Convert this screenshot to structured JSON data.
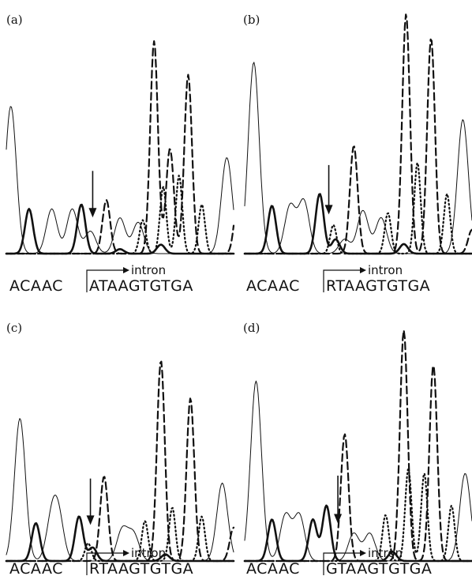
{
  "chart_data": [
    {
      "type": "line",
      "panel_label": "(a)",
      "sequence": "ACAAC|ATAAGTGTGA",
      "sequence_left": "ACAAC",
      "sequence_right": "ATAAGTGTGA",
      "annotation": "intron",
      "channels": [
        {
          "style": "thin",
          "peaks": [
            {
              "x": 0.02,
              "h": 0.66
            },
            {
              "x": 0.2,
              "h": 0.2
            },
            {
              "x": 0.29,
              "h": 0.2
            },
            {
              "x": 0.37,
              "h": 0.1
            },
            {
              "x": 0.5,
              "h": 0.16
            },
            {
              "x": 0.58,
              "h": 0.14
            },
            {
              "x": 0.97,
              "h": 0.43
            }
          ]
        },
        {
          "style": "bold",
          "peaks": [
            {
              "x": 0.1,
              "h": 0.2
            },
            {
              "x": 0.33,
              "h": 0.22
            },
            {
              "x": 0.5,
              "h": 0.02
            },
            {
              "x": 0.68,
              "h": 0.04
            }
          ]
        },
        {
          "style": "dashed",
          "peaks": [
            {
              "x": 0.44,
              "h": 0.24
            },
            {
              "x": 0.65,
              "h": 0.95
            },
            {
              "x": 0.72,
              "h": 0.47
            },
            {
              "x": 0.8,
              "h": 0.8
            },
            {
              "x": 1.02,
              "h": 0.25
            }
          ]
        },
        {
          "style": "dotted",
          "peaks": [
            {
              "x": 0.6,
              "h": 0.15
            },
            {
              "x": 0.69,
              "h": 0.3
            },
            {
              "x": 0.76,
              "h": 0.35
            },
            {
              "x": 0.86,
              "h": 0.22
            }
          ]
        }
      ],
      "arrow_x": 0.38
    },
    {
      "type": "line",
      "panel_label": "(b)",
      "sequence": "ACAAC|RTAAGTGTGA",
      "sequence_left": "ACAAC",
      "sequence_right": "RTAAGTGTGA",
      "annotation": "intron",
      "channels": [
        {
          "style": "thin",
          "peaks": [
            {
              "x": 0.04,
              "h": 0.8
            },
            {
              "x": 0.2,
              "h": 0.2
            },
            {
              "x": 0.26,
              "h": 0.22
            },
            {
              "x": 0.44,
              "h": 0.06
            },
            {
              "x": 0.52,
              "h": 0.18
            },
            {
              "x": 0.6,
              "h": 0.15
            },
            {
              "x": 0.96,
              "h": 0.56
            }
          ]
        },
        {
          "style": "bold",
          "peaks": [
            {
              "x": 0.12,
              "h": 0.2
            },
            {
              "x": 0.33,
              "h": 0.25
            },
            {
              "x": 0.4,
              "h": 0.06
            },
            {
              "x": 0.7,
              "h": 0.04
            }
          ]
        },
        {
          "style": "dashed",
          "peaks": [
            {
              "x": 0.48,
              "h": 0.45
            },
            {
              "x": 0.71,
              "h": 1.0
            },
            {
              "x": 0.82,
              "h": 0.9
            },
            {
              "x": 1.0,
              "h": 0.1
            }
          ]
        },
        {
          "style": "dotted",
          "peaks": [
            {
              "x": 0.39,
              "h": 0.12
            },
            {
              "x": 0.63,
              "h": 0.17
            },
            {
              "x": 0.76,
              "h": 0.38
            },
            {
              "x": 0.89,
              "h": 0.25
            }
          ]
        }
      ],
      "arrow_x": 0.37
    },
    {
      "type": "line",
      "panel_label": "(c)",
      "sequence": "ACAAC|RTAAGTGTGA",
      "sequence_left": "ACAAC",
      "sequence_right": "RTAAGTGTGA",
      "annotation": "intron",
      "channels": [
        {
          "style": "thin",
          "peaks": [
            {
              "x": 0.06,
              "h": 0.64
            },
            {
              "x": 0.2,
              "h": 0.18
            },
            {
              "x": 0.23,
              "h": 0.18
            },
            {
              "x": 0.51,
              "h": 0.14
            },
            {
              "x": 0.56,
              "h": 0.12
            },
            {
              "x": 0.95,
              "h": 0.35
            }
          ]
        },
        {
          "style": "bold",
          "peaks": [
            {
              "x": 0.13,
              "h": 0.17
            },
            {
              "x": 0.32,
              "h": 0.2
            },
            {
              "x": 0.38,
              "h": 0.06
            },
            {
              "x": 0.7,
              "h": 0.03
            }
          ]
        },
        {
          "style": "dashed",
          "peaks": [
            {
              "x": 0.43,
              "h": 0.38
            },
            {
              "x": 0.68,
              "h": 0.9
            },
            {
              "x": 0.81,
              "h": 0.73
            },
            {
              "x": 1.0,
              "h": 0.15
            }
          ]
        },
        {
          "style": "dotted",
          "peaks": [
            {
              "x": 0.36,
              "h": 0.08
            },
            {
              "x": 0.61,
              "h": 0.18
            },
            {
              "x": 0.73,
              "h": 0.24
            },
            {
              "x": 0.86,
              "h": 0.2
            }
          ]
        }
      ],
      "arrow_x": 0.37
    },
    {
      "type": "line",
      "panel_label": "(d)",
      "sequence": "ACAAC|GTAAGTGTGA",
      "sequence_left": "ACAAC",
      "sequence_right": "GTAAGTGTGA",
      "annotation": "intron",
      "channels": [
        {
          "style": "thin",
          "peaks": [
            {
              "x": 0.05,
              "h": 0.78
            },
            {
              "x": 0.18,
              "h": 0.2
            },
            {
              "x": 0.24,
              "h": 0.2
            },
            {
              "x": 0.48,
              "h": 0.12
            },
            {
              "x": 0.55,
              "h": 0.12
            },
            {
              "x": 0.97,
              "h": 0.38
            }
          ]
        },
        {
          "style": "bold",
          "peaks": [
            {
              "x": 0.12,
              "h": 0.18
            },
            {
              "x": 0.3,
              "h": 0.18
            },
            {
              "x": 0.36,
              "h": 0.24
            },
            {
              "x": 0.65,
              "h": 0.04
            }
          ]
        },
        {
          "style": "dashed",
          "peaks": [
            {
              "x": 0.44,
              "h": 0.55
            },
            {
              "x": 0.7,
              "h": 1.0
            },
            {
              "x": 0.83,
              "h": 0.85
            }
          ]
        },
        {
          "style": "dotted",
          "peaks": [
            {
              "x": 0.62,
              "h": 0.2
            },
            {
              "x": 0.72,
              "h": 0.4
            },
            {
              "x": 0.79,
              "h": 0.38
            },
            {
              "x": 0.91,
              "h": 0.24
            }
          ]
        }
      ],
      "arrow_x": 0.41
    }
  ]
}
